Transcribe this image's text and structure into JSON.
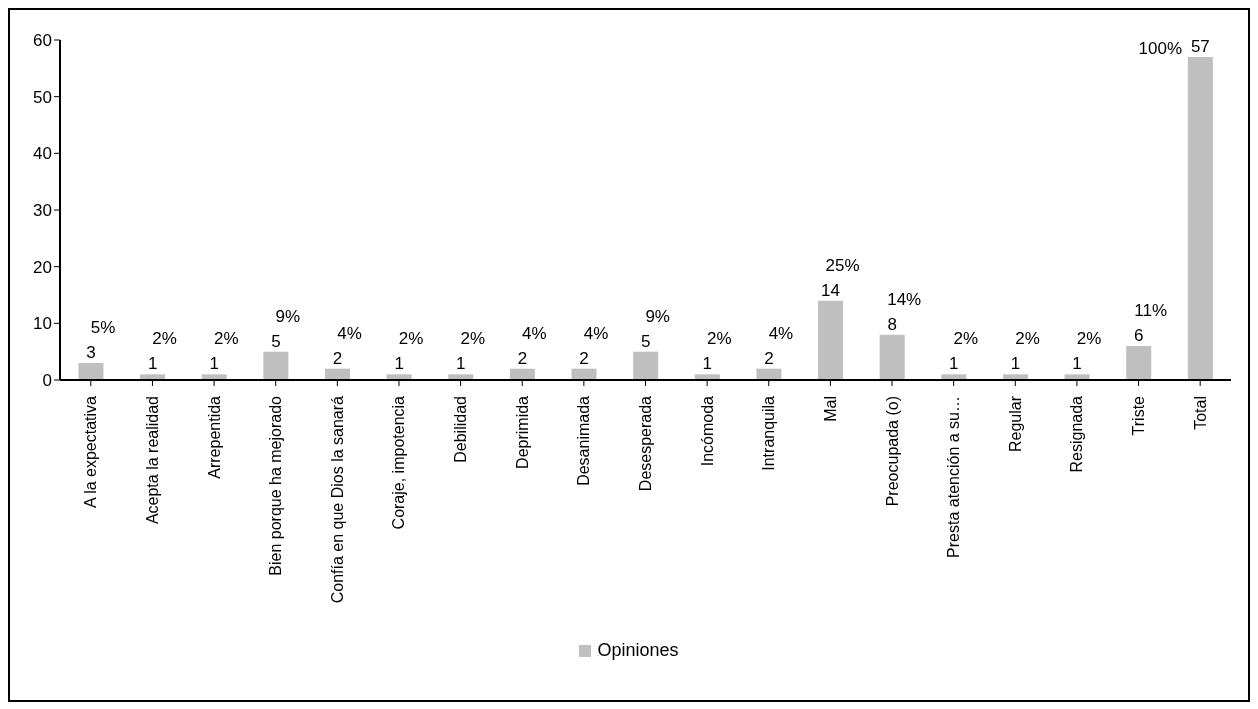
{
  "chart_data": {
    "type": "bar",
    "categories": [
      "A la expectativa",
      "Acepta la realidad",
      "Arrepentida",
      "Bien porque ha mejorado",
      "Confía en que Dios la sanará",
      "Coraje, impotencia",
      "Debilidad",
      "Deprimida",
      "Desanimada",
      "Desesperada",
      "Incómoda",
      "Intranquila",
      "Mal",
      "Preocupada (o)",
      "Presta atención a su…",
      "Regular",
      "Resignada",
      "Triste",
      "Total"
    ],
    "series": [
      {
        "name": "Opiniones",
        "color": "#bfbfbf",
        "values": [
          3,
          1,
          1,
          5,
          2,
          1,
          1,
          2,
          2,
          5,
          1,
          2,
          14,
          8,
          1,
          1,
          1,
          6,
          57
        ]
      }
    ],
    "data_labels": true,
    "annotations": [
      "5%",
      "2%",
      "2%",
      "9%",
      "4%",
      "2%",
      "2%",
      "4%",
      "4%",
      "9%",
      "2%",
      "4%",
      "25%",
      "14%",
      "2%",
      "2%",
      "2%",
      "11%",
      "100%"
    ],
    "ylim": [
      0,
      60
    ],
    "yticks": [
      0,
      10,
      20,
      30,
      40,
      50,
      60
    ],
    "legend": "bottom"
  }
}
